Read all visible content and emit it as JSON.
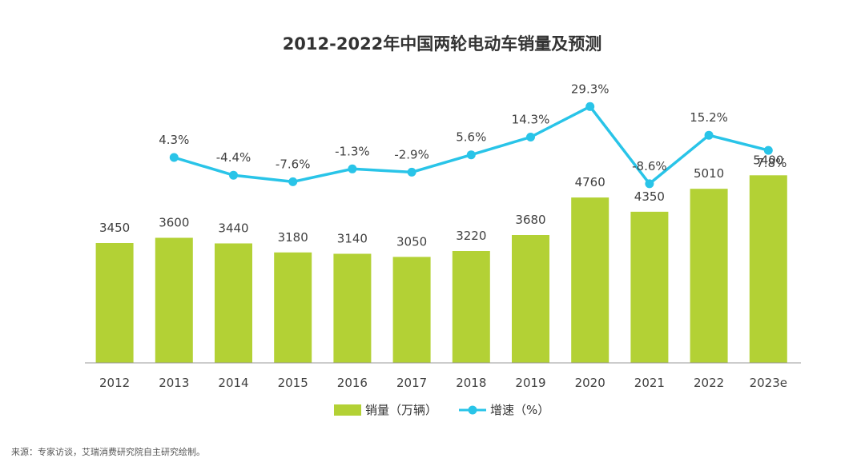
{
  "chart_data": {
    "type": "bar",
    "title": "2012-2022年中国两轮电动车销量及预测",
    "categories": [
      "2012",
      "2013",
      "2014",
      "2015",
      "2016",
      "2017",
      "2018",
      "2019",
      "2020",
      "2021",
      "2022",
      "2023e"
    ],
    "series": [
      {
        "name": "销量（万辆）",
        "type": "bar",
        "color": "#b3d135",
        "values": [
          3450,
          3600,
          3440,
          3180,
          3140,
          3050,
          3220,
          3680,
          4760,
          4350,
          5010,
          5400
        ],
        "labels": [
          "3450",
          "3600",
          "3440",
          "3180",
          "3140",
          "3050",
          "3220",
          "3680",
          "4760",
          "4350",
          "5010",
          "5400"
        ]
      },
      {
        "name": "增速（%）",
        "type": "line",
        "color": "#29c4e8",
        "values": [
          null,
          4.3,
          -4.4,
          -7.6,
          -1.3,
          -2.9,
          5.6,
          14.3,
          29.3,
          -8.6,
          15.2,
          7.8
        ],
        "labels": [
          "",
          "4.3%",
          "-4.4%",
          "-7.6%",
          "-1.3%",
          "-2.9%",
          "5.6%",
          "14.3%",
          "29.3%",
          "-8.6%",
          "15.2%",
          "7.8%"
        ]
      }
    ],
    "bar_axis_range": [
      0,
      7000
    ],
    "line_axis_range": [
      -25,
      35
    ],
    "xlabel": "",
    "ylabel": "",
    "grid": false,
    "legend_position": "bottom-center"
  },
  "legend": {
    "bar_label": "销量（万辆）",
    "line_label": "增速（%）"
  },
  "source_note": "来源：专家访谈，艾瑞消费研究院自主研究绘制。"
}
